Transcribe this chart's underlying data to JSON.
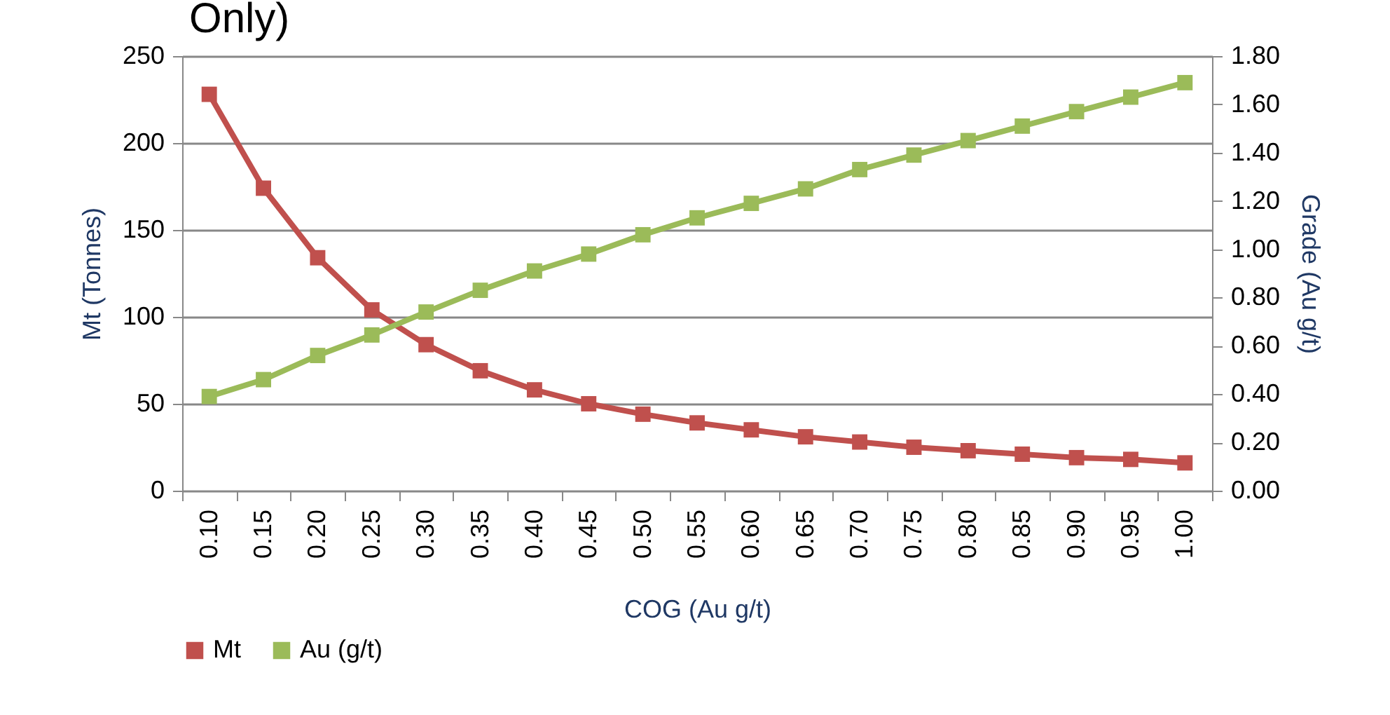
{
  "chart_data": {
    "type": "line",
    "title": "Only)",
    "xlabel": "COG (Au g/t)",
    "ylabel": "Mt (Tonnes)",
    "y2label": "Grade (Au g/t)",
    "categories": [
      "0.10",
      "0.15",
      "0.20",
      "0.25",
      "0.30",
      "0.35",
      "0.40",
      "0.45",
      "0.50",
      "0.55",
      "0.60",
      "0.65",
      "0.70",
      "0.75",
      "0.80",
      "0.85",
      "0.90",
      "0.95",
      "1.00"
    ],
    "series": [
      {
        "name": "Mt",
        "color": "#c0504d",
        "values": [
          228,
          174,
          134,
          104,
          84,
          69,
          58,
          50,
          44,
          39,
          35,
          31,
          28,
          25,
          23,
          21,
          19,
          18,
          16
        ]
      },
      {
        "name": "Au (g/t)",
        "color": "#9bbb59",
        "axis": "y2",
        "values": [
          0.39,
          0.46,
          0.56,
          0.645,
          0.74,
          0.83,
          0.91,
          0.98,
          1.06,
          1.13,
          1.19,
          1.25,
          1.33,
          1.39,
          1.45,
          1.51,
          1.57,
          1.63,
          1.69
        ]
      }
    ],
    "ylim": [
      0,
      250
    ],
    "yticks": [
      0,
      50,
      100,
      150,
      200,
      250
    ],
    "y2lim": [
      0,
      1.8
    ],
    "y2ticks": [
      {
        "value": 0,
        "label": "0.00"
      },
      {
        "value": 0.2,
        "label": "0.20"
      },
      {
        "value": 0.4,
        "label": "0.40"
      },
      {
        "value": 0.6,
        "label": "0.60"
      },
      {
        "value": 0.8,
        "label": "0.80"
      },
      {
        "value": 1,
        "label": "1.00"
      },
      {
        "value": 1.2,
        "label": "1.20"
      },
      {
        "value": 1.4,
        "label": "1.40"
      },
      {
        "value": 1.6,
        "label": "1.60"
      },
      {
        "value": 1.8,
        "label": "1.80"
      }
    ],
    "grid": "y",
    "legend": "bottom",
    "marker": "square",
    "line_style": "solid"
  }
}
